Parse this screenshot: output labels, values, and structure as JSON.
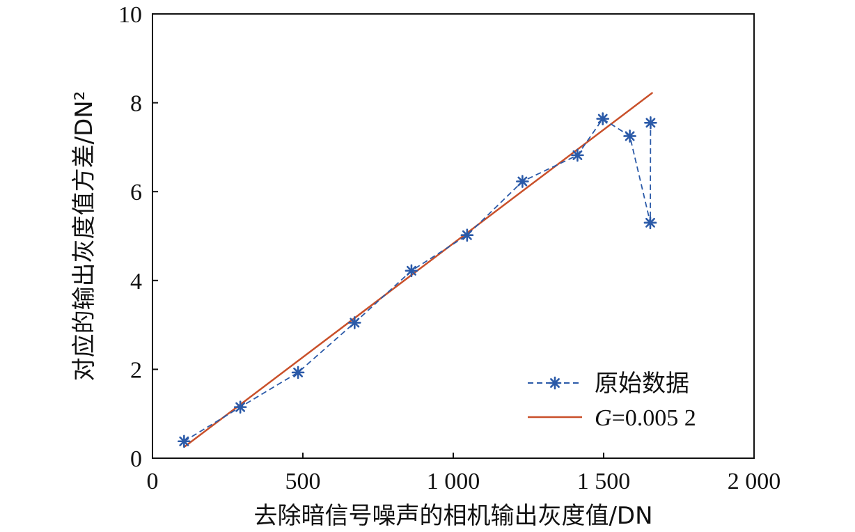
{
  "chart_data": {
    "type": "line",
    "xlabel": "去除暗信号噪声的相机输出灰度值/DN",
    "ylabel": "对应的输出灰度值方差/DN²",
    "xlim": [
      0,
      2000
    ],
    "ylim": [
      0,
      10
    ],
    "x_ticks": [
      0,
      500,
      1000,
      1500,
      2000
    ],
    "x_tick_labels": [
      "0",
      "500",
      "1 000",
      "1 500",
      "2 000"
    ],
    "y_ticks": [
      0,
      2,
      4,
      6,
      8,
      10
    ],
    "y_tick_labels": [
      "0",
      "2",
      "4",
      "6",
      "8",
      "10"
    ],
    "grid": false,
    "legend_position": "bottom-right",
    "series": [
      {
        "name": "原始数据",
        "style": "dashed-star",
        "color": "#2b5aa8",
        "x": [
          105,
          292,
          484,
          672,
          861,
          1046,
          1230,
          1413,
          1497,
          1587,
          1655,
          1656
        ],
        "y": [
          0.38,
          1.15,
          1.93,
          3.05,
          4.22,
          5.02,
          6.23,
          6.82,
          7.64,
          7.25,
          5.3,
          7.55
        ]
      },
      {
        "name_prefix": "G",
        "name_value": "=0.005 2",
        "style": "solid",
        "color": "#c9502a",
        "x": [
          105,
          1663
        ],
        "y": [
          0.25,
          8.23
        ]
      }
    ]
  }
}
